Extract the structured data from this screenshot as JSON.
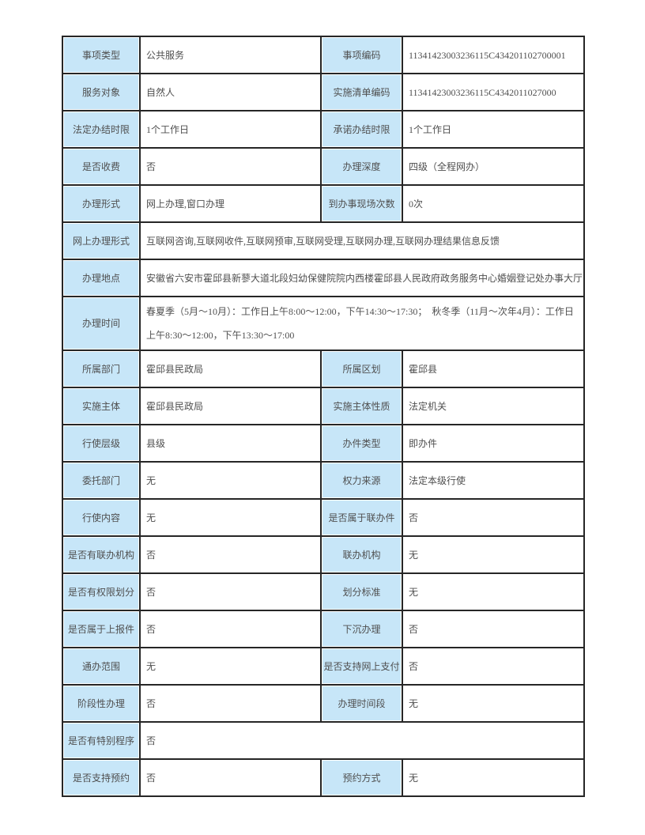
{
  "theme": {
    "label_cell_bg": "#c7e6f8",
    "border_color": "#262626",
    "text_color": "#4f4f4f",
    "page_bg": "#ffffff"
  },
  "table": {
    "rows": [
      {
        "cells": [
          {
            "type": "label",
            "text": "事项类型"
          },
          {
            "type": "value",
            "text": "公共服务"
          },
          {
            "type": "label",
            "text": "事项编码"
          },
          {
            "type": "value",
            "text": "11341423003236115C434201102700001"
          }
        ]
      },
      {
        "cells": [
          {
            "type": "label",
            "text": "服务对象"
          },
          {
            "type": "value",
            "text": "自然人"
          },
          {
            "type": "label",
            "text": "实施清单编码"
          },
          {
            "type": "value",
            "text": "11341423003236115C4342011027000"
          }
        ]
      },
      {
        "cells": [
          {
            "type": "label",
            "text": "法定办结时限"
          },
          {
            "type": "value",
            "text": "1个工作日"
          },
          {
            "type": "label",
            "text": "承诺办结时限"
          },
          {
            "type": "value",
            "text": "1个工作日"
          }
        ]
      },
      {
        "cells": [
          {
            "type": "label",
            "text": "是否收费"
          },
          {
            "type": "value",
            "text": "否"
          },
          {
            "type": "label",
            "text": "办理深度"
          },
          {
            "type": "value",
            "text": "四级（全程网办）"
          }
        ]
      },
      {
        "cells": [
          {
            "type": "label",
            "text": "办理形式"
          },
          {
            "type": "value",
            "text": "网上办理,窗口办理"
          },
          {
            "type": "label",
            "text": "到办事现场次数"
          },
          {
            "type": "value",
            "text": "0次"
          }
        ]
      },
      {
        "cells": [
          {
            "type": "label",
            "text": "网上办理形式"
          },
          {
            "type": "value",
            "text": "互联网咨询,互联网收件,互联网预审,互联网受理,互联网办理,互联网办理结果信息反馈",
            "colspan": 3
          }
        ]
      },
      {
        "cells": [
          {
            "type": "label",
            "text": "办理地点"
          },
          {
            "type": "value",
            "text": "安徽省六安市霍邱县新蓼大道北段妇幼保健院院内西楼霍邱县人民政府政务服务中心婚姻登记处办事大厅",
            "colspan": 3
          }
        ]
      },
      {
        "cells": [
          {
            "type": "label",
            "text": "办理时间"
          },
          {
            "type": "value",
            "text": "春夏季（5月～10月）：工作日上午8:00～12:00，下午14:30～17:30；　秋冬季（11月～次年4月）：工作日上午8:30～12:00，下午13:30～17:00",
            "colspan": 3
          }
        ]
      },
      {
        "cells": [
          {
            "type": "label",
            "text": "所属部门"
          },
          {
            "type": "value",
            "text": "霍邱县民政局"
          },
          {
            "type": "label",
            "text": "所属区划"
          },
          {
            "type": "value",
            "text": "霍邱县"
          }
        ]
      },
      {
        "cells": [
          {
            "type": "label",
            "text": "实施主体"
          },
          {
            "type": "value",
            "text": "霍邱县民政局"
          },
          {
            "type": "label",
            "text": "实施主体性质"
          },
          {
            "type": "value",
            "text": "法定机关"
          }
        ]
      },
      {
        "cells": [
          {
            "type": "label",
            "text": "行使层级"
          },
          {
            "type": "value",
            "text": "县级"
          },
          {
            "type": "label",
            "text": "办件类型"
          },
          {
            "type": "value",
            "text": "即办件"
          }
        ]
      },
      {
        "cells": [
          {
            "type": "label",
            "text": "委托部门"
          },
          {
            "type": "value",
            "text": "无"
          },
          {
            "type": "label",
            "text": "权力来源"
          },
          {
            "type": "value",
            "text": "法定本级行使"
          }
        ]
      },
      {
        "cells": [
          {
            "type": "label",
            "text": "行使内容"
          },
          {
            "type": "value",
            "text": "无"
          },
          {
            "type": "label",
            "text": "是否属于联办件"
          },
          {
            "type": "value",
            "text": "否"
          }
        ]
      },
      {
        "cells": [
          {
            "type": "label",
            "text": "是否有联办机构"
          },
          {
            "type": "value",
            "text": "否"
          },
          {
            "type": "label",
            "text": "联办机构"
          },
          {
            "type": "value",
            "text": "无"
          }
        ]
      },
      {
        "cells": [
          {
            "type": "label",
            "text": "是否有权限划分"
          },
          {
            "type": "value",
            "text": "否"
          },
          {
            "type": "label",
            "text": "划分标准"
          },
          {
            "type": "value",
            "text": "无"
          }
        ]
      },
      {
        "cells": [
          {
            "type": "label",
            "text": "是否属于上报件"
          },
          {
            "type": "value",
            "text": "否"
          },
          {
            "type": "label",
            "text": "下沉办理"
          },
          {
            "type": "value",
            "text": "否"
          }
        ]
      },
      {
        "cells": [
          {
            "type": "label",
            "text": "通办范围"
          },
          {
            "type": "value",
            "text": "无"
          },
          {
            "type": "label",
            "text": "是否支持网上支付"
          },
          {
            "type": "value",
            "text": "否"
          }
        ]
      },
      {
        "cells": [
          {
            "type": "label",
            "text": "阶段性办理"
          },
          {
            "type": "value",
            "text": "否"
          },
          {
            "type": "label",
            "text": "办理时间段"
          },
          {
            "type": "value",
            "text": "无"
          }
        ]
      },
      {
        "cells": [
          {
            "type": "label",
            "text": "是否有特别程序"
          },
          {
            "type": "value",
            "text": "否",
            "colspan": 3
          }
        ]
      },
      {
        "cells": [
          {
            "type": "label",
            "text": "是否支持预约"
          },
          {
            "type": "value",
            "text": "否"
          },
          {
            "type": "label",
            "text": "预约方式"
          },
          {
            "type": "value",
            "text": "无"
          }
        ]
      },
      {
        "cells": [
          {
            "type": "label",
            "text": ""
          },
          {
            "type": "value",
            "text": ""
          },
          {
            "type": "label",
            "text": ""
          },
          {
            "type": "value",
            "text": ""
          }
        ]
      }
    ]
  }
}
